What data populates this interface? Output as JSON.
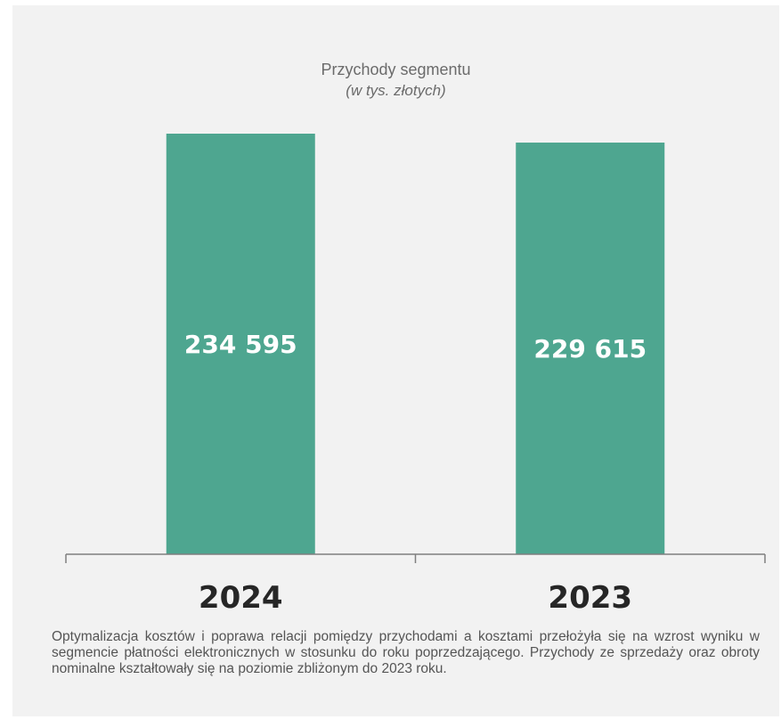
{
  "chart_data": {
    "type": "bar",
    "title": "Przychody segmentu",
    "subtitle": "(w tys. złotych)",
    "categories": [
      "2024",
      "2023"
    ],
    "values": [
      234595,
      229615
    ],
    "value_labels": [
      "234 595",
      "229 615"
    ],
    "ylim": [
      0,
      234595
    ],
    "bar_color": "#4ea690",
    "grid": false,
    "legend": "none"
  },
  "description": "Optymalizacja kosztów i poprawa relacji pomiędzy przychodami a kosztami przełożyła się na wzrost wyniku w segmencie płatności elektronicznych w stosunku do roku poprzedzającego. Przychody ze sprzedaży oraz obroty nominalne kształtowały się na poziomie zbliżonym do 2023 roku."
}
